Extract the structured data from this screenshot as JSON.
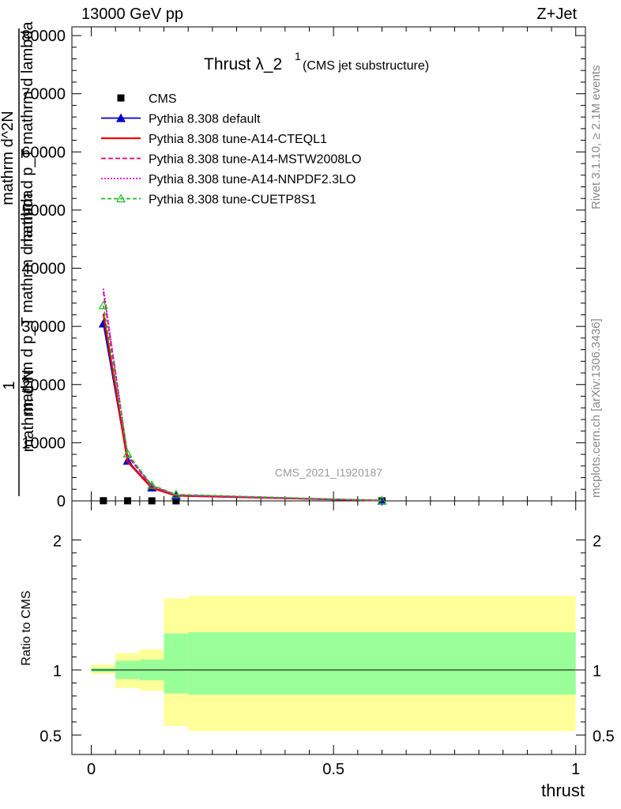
{
  "header": {
    "left": "13000 GeV pp",
    "right": "Z+Jet"
  },
  "side_labels": {
    "rivet": "Rivet 3.1.10, ≥ 2.1M events",
    "mcplots": "mcplots.cern.ch [arXiv:1306.3436]"
  },
  "watermark": "CMS_2021_I1920187",
  "chart_data": [
    {
      "type": "line",
      "title": "Thrust λ_2",
      "title_superscript": "1",
      "subtitle": "(CMS jet substructure)",
      "ylabel_lines": [
        "1",
        "mathrm d N",
        "mathrm d p_T mathrm d lambda",
        "mathrm d^2N",
        "mathrm d p_T mathrm d lambda"
      ],
      "xlim": [
        -0.04,
        1.02
      ],
      "ylim": [
        0,
        81500
      ],
      "yticks": [
        0,
        10000,
        20000,
        30000,
        40000,
        50000,
        60000,
        70000,
        80000
      ],
      "ytick_labels": [
        "0",
        "10000",
        "20000",
        "30000",
        "40000",
        "50000",
        "60000",
        "70000",
        "80000"
      ],
      "x": [
        0.025,
        0.075,
        0.125,
        0.175,
        0.6
      ],
      "series": [
        {
          "name": "CMS",
          "style": "marker-square",
          "color": "#000000",
          "x": [
            0.025,
            0.075,
            0.125,
            0.175,
            0.6
          ],
          "values": [
            30,
            15,
            12,
            8,
            3
          ]
        },
        {
          "name": "Pythia 8.308 default",
          "style": "solid-triangle",
          "color": "#0000cc",
          "x": [
            0.025,
            0.075,
            0.125,
            0.175,
            0.6
          ],
          "values": [
            30500,
            6900,
            2300,
            900,
            50
          ]
        },
        {
          "name": "Pythia 8.308 tune-A14-CTEQL1",
          "style": "solid",
          "color": "#ee0000",
          "x": [
            0.025,
            0.075,
            0.125,
            0.175,
            0.6
          ],
          "values": [
            32200,
            6700,
            2200,
            900,
            50
          ]
        },
        {
          "name": "Pythia 8.308 tune-A14-MSTW2008LO",
          "style": "dashed",
          "color": "#ee0077",
          "x": [
            0.025,
            0.075,
            0.125,
            0.175,
            0.6
          ],
          "values": [
            36000,
            7700,
            2500,
            1000,
            50
          ]
        },
        {
          "name": "Pythia 8.308 tune-A14-NNPDF2.3LO",
          "style": "dotted",
          "color": "#dd00dd",
          "x": [
            0.025,
            0.075,
            0.125,
            0.175,
            0.6
          ],
          "values": [
            36500,
            7900,
            2600,
            1000,
            50
          ]
        },
        {
          "name": "Pythia 8.308 tune-CUETP8S1",
          "style": "dashed-open-triangle",
          "color": "#22bb22",
          "x": [
            0.025,
            0.075,
            0.125,
            0.175,
            0.6
          ],
          "values": [
            33600,
            8100,
            2700,
            1100,
            50
          ]
        }
      ],
      "legend_placement": "top-left"
    },
    {
      "type": "area",
      "ylabel": "Ratio to CMS",
      "xlabel": "thrust",
      "xlim": [
        -0.04,
        1.02
      ],
      "ylim": [
        0.35,
        2.3
      ],
      "yticks": [
        0.5,
        1,
        2
      ],
      "ytick_labels": [
        "0.5",
        "1",
        "2"
      ],
      "xticks": [
        0,
        0.5,
        1
      ],
      "xtick_labels": [
        "0",
        "0.5",
        "1"
      ],
      "reference_line": 1,
      "bins": [
        {
          "x0": 0.0,
          "x1": 0.05,
          "stat_lo": 0.985,
          "stat_hi": 1.015,
          "tot_lo": 0.97,
          "tot_hi": 1.04
        },
        {
          "x0": 0.05,
          "x1": 0.1,
          "stat_lo": 0.93,
          "stat_hi": 1.07,
          "tot_lo": 0.86,
          "tot_hi": 1.13
        },
        {
          "x0": 0.1,
          "x1": 0.15,
          "stat_lo": 0.92,
          "stat_hi": 1.08,
          "tot_lo": 0.84,
          "tot_hi": 1.16
        },
        {
          "x0": 0.15,
          "x1": 0.2,
          "stat_lo": 0.82,
          "stat_hi": 1.28,
          "tot_lo": 0.57,
          "tot_hi": 1.55
        },
        {
          "x0": 0.2,
          "x1": 1.0,
          "stat_lo": 0.81,
          "stat_hi": 1.29,
          "tot_lo": 0.53,
          "tot_hi": 1.57
        }
      ],
      "band_colors": {
        "stat": "#99ff99",
        "total": "#ffff99"
      }
    }
  ]
}
